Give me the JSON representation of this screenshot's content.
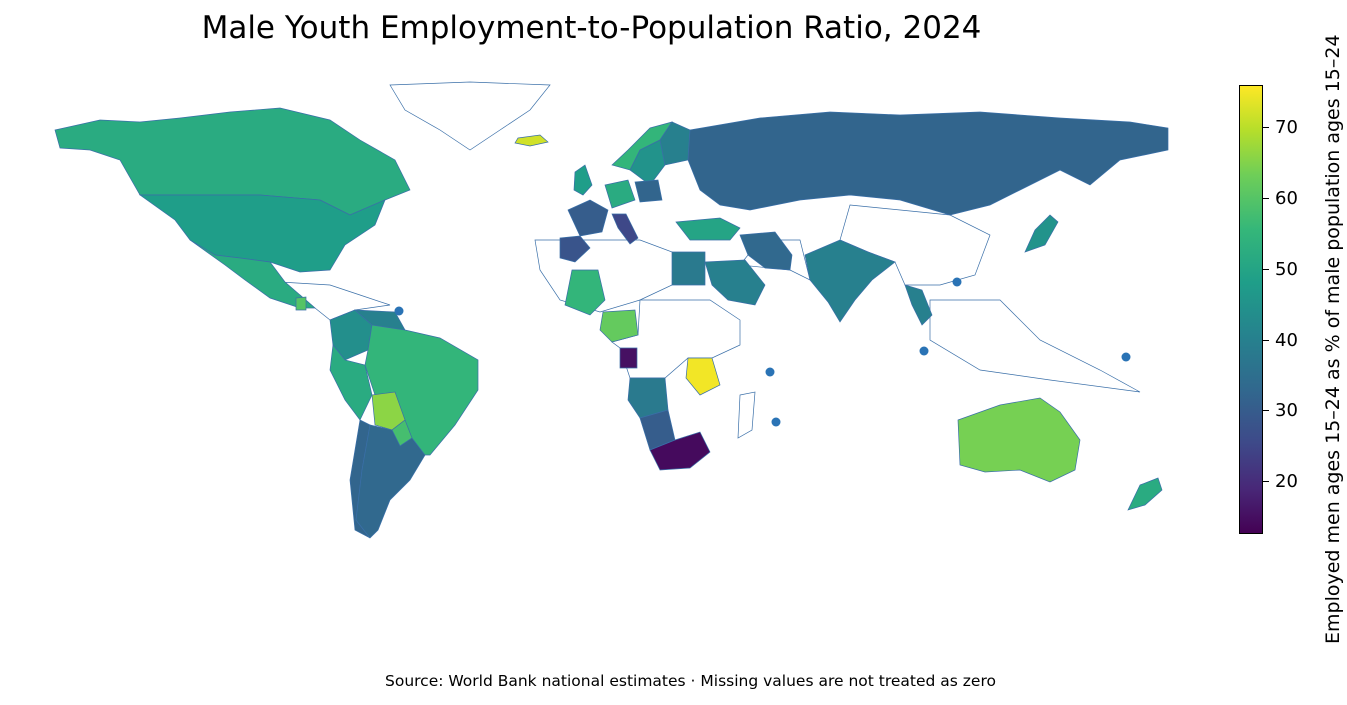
{
  "title": "Male Youth Employment-to-Population Ratio, 2024",
  "source_note": "Source: World Bank national estimates · Missing values are not treated as zero",
  "colorbar": {
    "label": "Employed men ages 15–24 as % of male population ages 15–24",
    "min": 12.5,
    "max": 76,
    "ticks": [
      "20",
      "30",
      "40",
      "50",
      "60",
      "70"
    ],
    "tick_values": [
      20,
      30,
      40,
      50,
      60,
      70
    ],
    "colormap": "viridis"
  },
  "colors": {
    "missing_fill": "#ffffff",
    "border": "#3a6fa8",
    "dot": "#2a73b5"
  },
  "chart_data": {
    "type": "choropleth",
    "title": "Male Youth Employment-to-Population Ratio, 2024",
    "value_label": "Employed men ages 15–24 as % of male population ages 15–24",
    "regions": [
      {
        "name": "Canada",
        "value": 52
      },
      {
        "name": "United States",
        "value": 48
      },
      {
        "name": "Mexico",
        "value": 52
      },
      {
        "name": "Guatemala",
        "value": 60
      },
      {
        "name": "Colombia",
        "value": 44
      },
      {
        "name": "Venezuela",
        "value": 40
      },
      {
        "name": "Peru",
        "value": 52
      },
      {
        "name": "Brazil",
        "value": 55
      },
      {
        "name": "Bolivia",
        "value": 66
      },
      {
        "name": "Paraguay",
        "value": 58
      },
      {
        "name": "Chile",
        "value": 32
      },
      {
        "name": "Argentina",
        "value": 33
      },
      {
        "name": "Iceland",
        "value": 72
      },
      {
        "name": "Norway",
        "value": 55
      },
      {
        "name": "Sweden",
        "value": 45
      },
      {
        "name": "Finland",
        "value": 40
      },
      {
        "name": "United Kingdom",
        "value": 48
      },
      {
        "name": "France",
        "value": 30
      },
      {
        "name": "Spain",
        "value": 28
      },
      {
        "name": "Italy",
        "value": 25
      },
      {
        "name": "Germany",
        "value": 52
      },
      {
        "name": "Poland",
        "value": 32
      },
      {
        "name": "Russia",
        "value": 32
      },
      {
        "name": "Turkey",
        "value": 50
      },
      {
        "name": "Iran",
        "value": 33
      },
      {
        "name": "Saudi Arabia",
        "value": 40
      },
      {
        "name": "Egypt",
        "value": 38
      },
      {
        "name": "Mali",
        "value": 55
      },
      {
        "name": "Nigeria",
        "value": 62
      },
      {
        "name": "Gabon",
        "value": 15
      },
      {
        "name": "Tanzania",
        "value": 75
      },
      {
        "name": "Angola",
        "value": 38
      },
      {
        "name": "Namibia",
        "value": 30
      },
      {
        "name": "South Africa",
        "value": 14
      },
      {
        "name": "India",
        "value": 40
      },
      {
        "name": "Thailand",
        "value": 40
      },
      {
        "name": "Japan",
        "value": 45
      },
      {
        "name": "Australia",
        "value": 64
      },
      {
        "name": "New Zealand",
        "value": 52
      }
    ]
  }
}
